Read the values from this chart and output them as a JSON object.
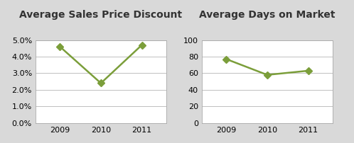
{
  "left_title": "Average Sales Price Discount",
  "right_title": "Average Days on Market",
  "years": [
    2009,
    2010,
    2011
  ],
  "discount_values": [
    0.046,
    0.024,
    0.047
  ],
  "days_values": [
    77,
    58,
    63
  ],
  "line_color": "#7B9E3A",
  "marker": "D",
  "marker_size": 5,
  "left_ylim": [
    0.0,
    0.05
  ],
  "right_ylim": [
    0,
    100
  ],
  "left_yticks": [
    0.0,
    0.01,
    0.02,
    0.03,
    0.04,
    0.05
  ],
  "right_yticks": [
    0,
    20,
    40,
    60,
    80,
    100
  ],
  "outer_bg_color": "#D9D9D9",
  "plot_bg_color": "#FFFFFF",
  "grid_color": "#C0C0C0",
  "title_fontsize": 10,
  "tick_fontsize": 8,
  "linewidth": 1.8
}
